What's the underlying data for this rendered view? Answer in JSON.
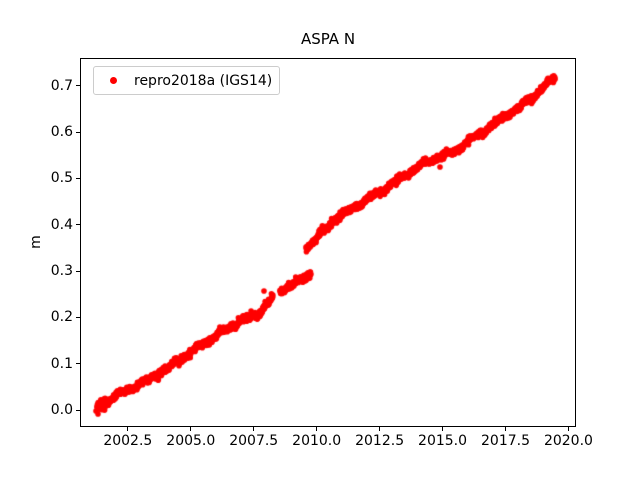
{
  "chart_data": {
    "type": "scatter",
    "title": "ASPA N",
    "xlabel": "",
    "ylabel": "m",
    "xlim": [
      2000.6,
      2020.3
    ],
    "ylim": [
      -0.0365,
      0.76
    ],
    "grid": false,
    "xticks": [
      {
        "value": 2002.5,
        "label": "2002.5"
      },
      {
        "value": 2005.0,
        "label": "2005.0"
      },
      {
        "value": 2007.5,
        "label": "2007.5"
      },
      {
        "value": 2010.0,
        "label": "2010.0"
      },
      {
        "value": 2012.5,
        "label": "2012.5"
      },
      {
        "value": 2015.0,
        "label": "2015.0"
      },
      {
        "value": 2017.5,
        "label": "2017.5"
      },
      {
        "value": 2020.0,
        "label": "2020.0"
      }
    ],
    "yticks": [
      {
        "value": 0.0,
        "label": "0.0"
      },
      {
        "value": 0.1,
        "label": "0.1"
      },
      {
        "value": 0.2,
        "label": "0.2"
      },
      {
        "value": 0.3,
        "label": "0.3"
      },
      {
        "value": 0.4,
        "label": "0.4"
      },
      {
        "value": 0.5,
        "label": "0.5"
      },
      {
        "value": 0.6,
        "label": "0.6"
      },
      {
        "value": 0.7,
        "label": "0.7"
      }
    ],
    "legend": {
      "position": "upper left",
      "label": "repro2018a (IGS14)",
      "marker": "dot",
      "marker_color": "#ff0000",
      "border_color": "#cccccc"
    },
    "series": [
      {
        "name": "repro2018a (IGS14)",
        "color": "#ff0000",
        "marker": "point",
        "marker_radius_px": 2.8,
        "sample_interval_years": 0.008,
        "seed": 20180914,
        "noise_sigma_m": 0.0034,
        "start_boost": {
          "until_year": 2001.65,
          "factor": 2.0
        },
        "wiggles": [
          {
            "period": 1.0,
            "amp": 0.0028,
            "phase": 0.3
          },
          {
            "period": 3.5,
            "amp": 0.0022,
            "phase": 1.7
          },
          {
            "period": 0.45,
            "amp": 0.0014,
            "phase": 0.9
          }
        ],
        "segments": [
          {
            "anchors": [
              [
                2001.275,
                0.0045
              ],
              [
                2003.38,
                0.0693
              ],
              [
                2005.366,
                0.1362
              ],
              [
                2006.955,
                0.1945
              ],
              [
                2007.67,
                0.2074
              ],
              [
                2008.266,
                0.2441
              ]
            ]
          },
          {
            "anchors": [
              [
                2008.544,
                0.2549
              ],
              [
                2009.18,
                0.2722
              ],
              [
                2009.775,
                0.2959
              ]
            ]
          },
          {
            "anchors": [
              [
                2009.577,
                0.3477
              ],
              [
                2010.729,
                0.4146
              ],
              [
                2012.516,
                0.4686
              ],
              [
                2014.303,
                0.5377
              ],
              [
                2015.494,
                0.5571
              ],
              [
                2017.281,
                0.6283
              ],
              [
                2018.473,
                0.6715
              ],
              [
                2019.466,
                0.7146
              ]
            ]
          }
        ],
        "outliers": [
          [
            2007.908,
            0.2571
          ],
          [
            2014.898,
            0.5247
          ],
          [
            2001.315,
            -0.0085
          ],
          [
            2001.235,
            -0.002
          ],
          [
            2001.513,
            0.0131
          ]
        ]
      }
    ]
  }
}
